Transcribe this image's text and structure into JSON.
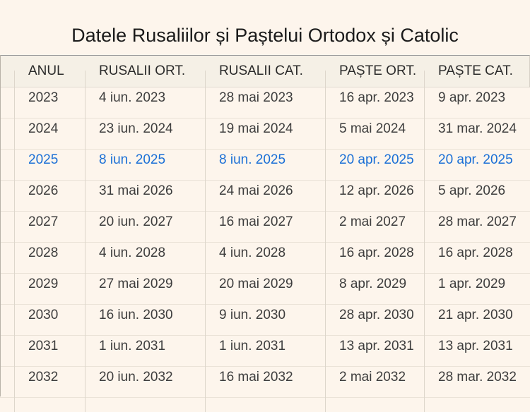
{
  "title": "Datele Rusaliilor și Paștelui Ortodox și Catolic",
  "table": {
    "headers": [
      "ANUL",
      "RUSALII ORT.",
      "RUSALII CAT.",
      "PAȘTE ORT.",
      "PAȘTE CAT."
    ],
    "rows": [
      [
        "2023",
        "4 iun. 2023",
        "28 mai 2023",
        "16 apr. 2023",
        "9 apr. 2023"
      ],
      [
        "2024",
        "23 iun. 2024",
        "19 mai 2024",
        "5 mai 2024",
        "31 mar. 2024"
      ],
      [
        "2025",
        "8 iun. 2025",
        "8 iun. 2025",
        "20 apr. 2025",
        "20 apr. 2025"
      ],
      [
        "2026",
        "31 mai 2026",
        "24 mai 2026",
        "12 apr. 2026",
        "5 apr. 2026"
      ],
      [
        "2027",
        "20 iun. 2027",
        "16 mai 2027",
        "2 mai 2027",
        "28 mar. 2027"
      ],
      [
        "2028",
        "4 iun. 2028",
        "4 iun. 2028",
        "16 apr. 2028",
        "16 apr. 2028"
      ],
      [
        "2029",
        "27 mai 2029",
        "20 mai 2029",
        "8 apr. 2029",
        "1 apr. 2029"
      ],
      [
        "2030",
        "16 iun. 2030",
        "9 iun. 2030",
        "28 apr. 2030",
        "21 apr. 2030"
      ],
      [
        "2031",
        "1 iun. 2031",
        "1 iun. 2031",
        "13 apr. 2031",
        "13 apr. 2031"
      ],
      [
        "2032",
        "20 iun. 2032",
        "16 mai 2032",
        "2 mai 2032",
        "28 mar. 2032"
      ]
    ],
    "highlighted_year": "2025"
  },
  "colors": {
    "background": "#fdf5ec",
    "header_background": "#f5f0e6",
    "text": "#3d3d3d",
    "highlight": "#1a6fd6"
  }
}
